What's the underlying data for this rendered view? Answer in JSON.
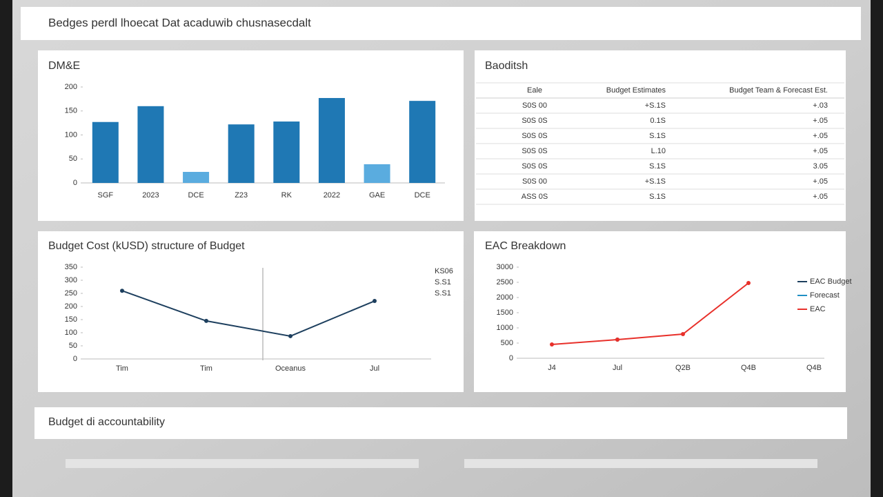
{
  "header": {
    "title": "Bedges perdl lhoecat Dat acaduwib chusnasecdalt"
  },
  "chart_data": [
    {
      "type": "bar",
      "title": "DM&E",
      "categories": [
        "SGF",
        "2023",
        "DCE",
        "Z23",
        "RK",
        "2022",
        "GAE",
        "DCE"
      ],
      "values": [
        127,
        160,
        23,
        122,
        128,
        177,
        39,
        171
      ],
      "colors": [
        "#1f78b4",
        "#1f78b4",
        "#5aacdf",
        "#1f78b4",
        "#1f78b4",
        "#1f78b4",
        "#5aacdf",
        "#1f78b4"
      ],
      "ylim": [
        0,
        200
      ],
      "yticks": [
        0,
        50,
        100,
        150,
        200
      ],
      "grid": false
    },
    {
      "type": "line",
      "title": "Budget Cost (kUSD) structure of Budget",
      "categories": [
        "Tim",
        "Tim",
        "Oceanus",
        "Jul"
      ],
      "values": [
        260,
        145,
        87,
        221
      ],
      "color": "#1d3f5e",
      "ylim": [
        0,
        350
      ],
      "yticks": [
        0,
        50,
        100,
        150,
        200,
        250,
        300,
        350
      ],
      "annotations": [
        "KS06",
        "S.S1",
        "S.S1"
      ]
    },
    {
      "type": "line",
      "title": "EAC Breakdown",
      "categories": [
        "J4",
        "Jul",
        "Q2B",
        "Q4B",
        "Q4B"
      ],
      "series": [
        {
          "name": "EAC Budget",
          "color": "#1d3f5e",
          "values": [
            null,
            614,
            null,
            null,
            null
          ]
        },
        {
          "name": "Forecast",
          "color": "#1f8fc4",
          "values": [
            null,
            null,
            null,
            null,
            null
          ]
        },
        {
          "name": "EAC",
          "color": "#e8302a",
          "values": [
            455,
            614,
            795,
            2477,
            null
          ]
        }
      ],
      "ylim": [
        0,
        3000
      ],
      "yticks": [
        0,
        500,
        1000,
        1500,
        2000,
        2500,
        3000
      ]
    }
  ],
  "table": {
    "title": "Baoditsh",
    "columns": [
      "Eale",
      "Budget Estimates",
      "Budget Team & Forecast Est."
    ],
    "rows": [
      [
        "S0S 00",
        "+S.1S",
        "+.03"
      ],
      [
        "S0S 0S",
        "0.1S",
        "+.05"
      ],
      [
        "S0S 0S",
        "S.1S",
        "+.05"
      ],
      [
        "S0S 0S",
        "L.10",
        "+.05"
      ],
      [
        "S0S 0S",
        "S.1S",
        "3.05"
      ],
      [
        "S0S 00",
        "+S.1S",
        "+.05"
      ],
      [
        "ASS 0S",
        "S.1S",
        "+.05"
      ]
    ]
  },
  "footer": {
    "title": "Budget di accountability"
  }
}
